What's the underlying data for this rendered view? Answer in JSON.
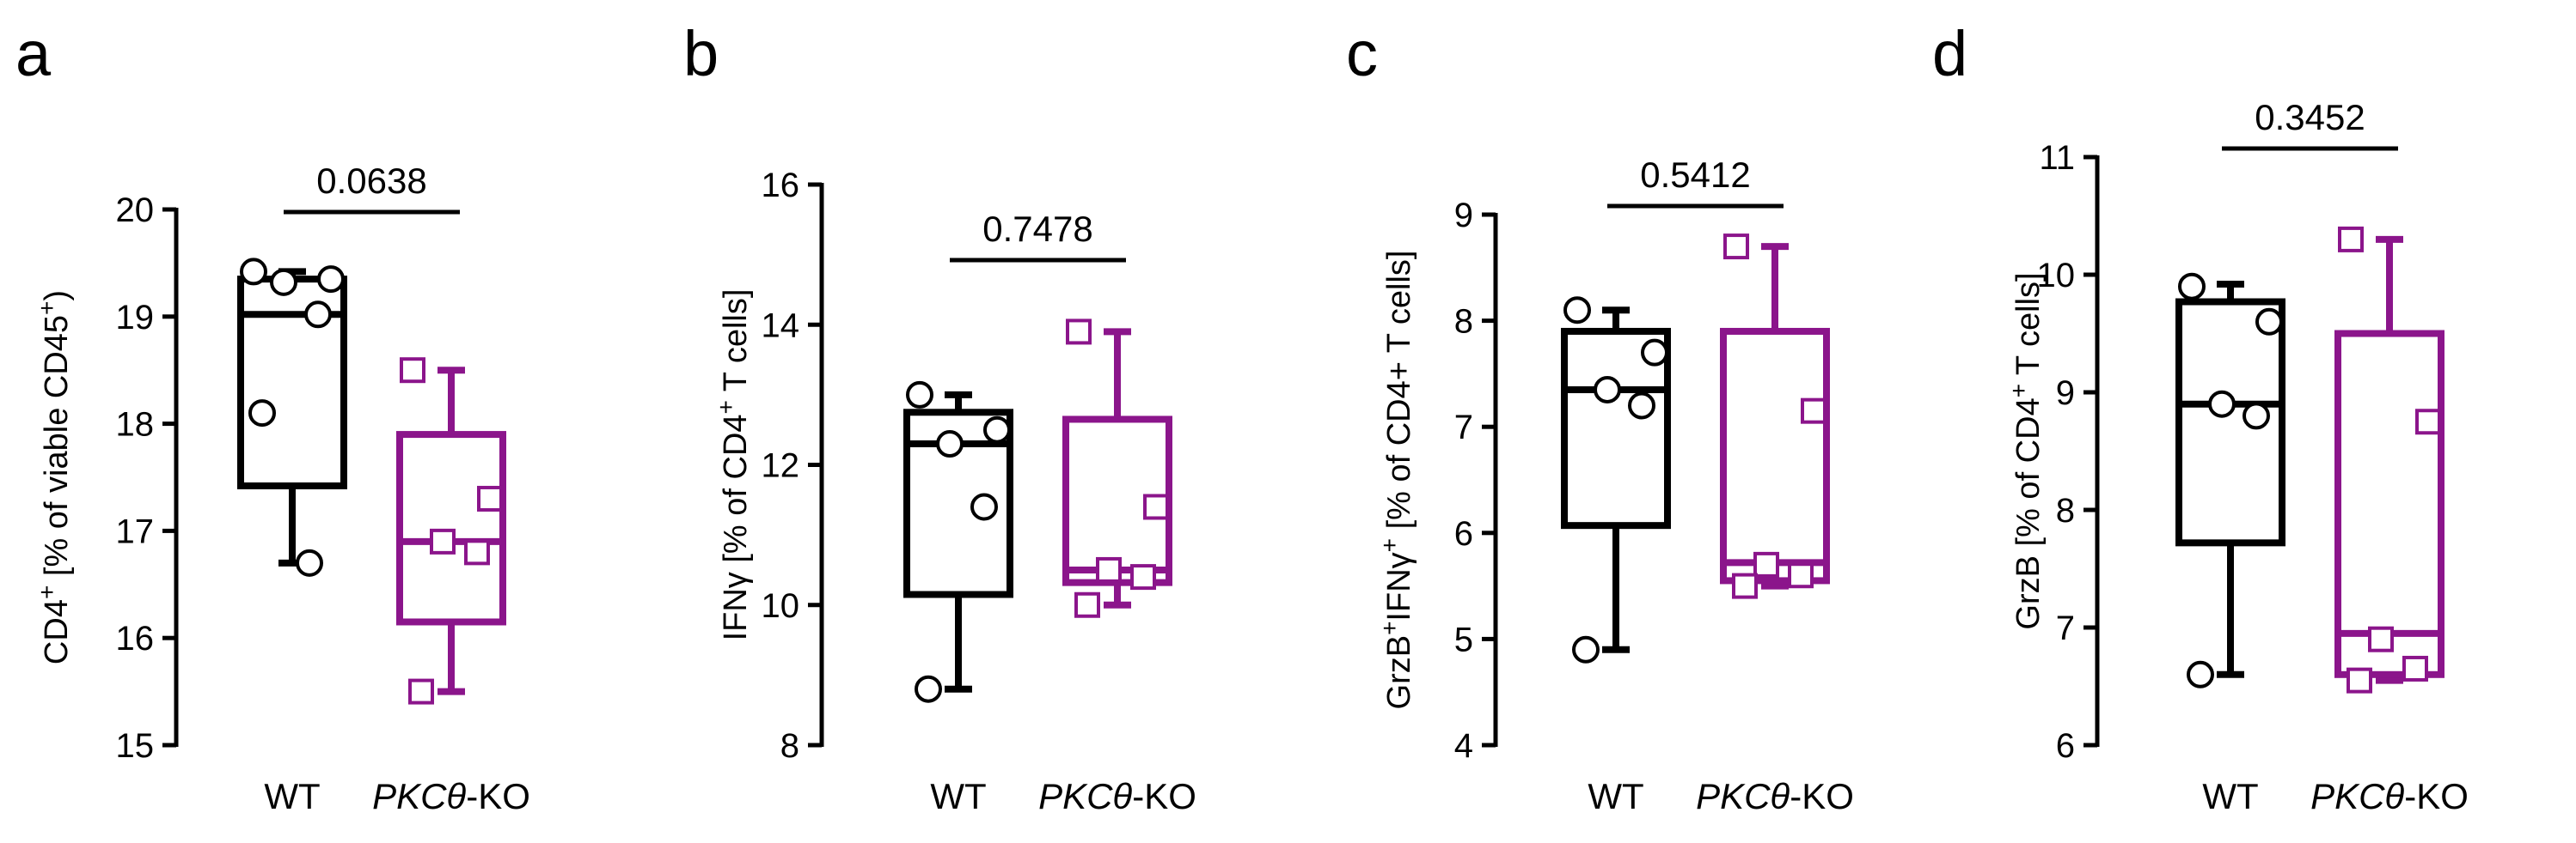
{
  "colors": {
    "wt": "#000000",
    "ko": "#8b158b"
  },
  "chart_data": [
    {
      "panel": "a",
      "type": "box",
      "ylabel": {
        "main": "CD4",
        "sup": "+",
        "rest": " [% of viable CD45",
        "sup2": "+",
        "end": ")"
      },
      "ylim": [
        15,
        20
      ],
      "yticks": [
        "15",
        "16",
        "17",
        "18",
        "19",
        "20"
      ],
      "categories": [
        {
          "name": "WT",
          "italic": "",
          "suffix": ""
        },
        {
          "name": "",
          "italic": "PKCθ",
          "suffix": "-KO"
        }
      ],
      "pvalue": "0.0638",
      "groups": [
        {
          "points": [
            19.42,
            19.35,
            19.32,
            19.02,
            18.1,
            16.7
          ],
          "min": 16.7,
          "q1": 17.42,
          "median": 19.02,
          "q3": 19.35,
          "max": 19.42
        },
        {
          "points": [
            18.5,
            17.3,
            16.9,
            16.8,
            15.5
          ],
          "min": 15.5,
          "q1": 16.15,
          "median": 16.9,
          "q3": 17.9,
          "max": 18.5
        }
      ]
    },
    {
      "panel": "b",
      "type": "box",
      "ylabel": {
        "main": "IFNγ",
        "sup": "",
        "rest": " [% of CD4",
        "sup2": "+",
        "end": " T cells]"
      },
      "ylim": [
        8,
        16
      ],
      "yticks": [
        "8",
        "10",
        "12",
        "14",
        "16"
      ],
      "categories": [
        {
          "name": "WT",
          "italic": "",
          "suffix": ""
        },
        {
          "name": "",
          "italic": "PKCθ",
          "suffix": "-KO"
        }
      ],
      "pvalue": "0.7478",
      "groups": [
        {
          "points": [
            13.0,
            12.5,
            12.3,
            11.4,
            8.8
          ],
          "min": 8.8,
          "q1": 10.15,
          "median": 12.3,
          "q3": 12.75,
          "max": 13.0
        },
        {
          "points": [
            13.9,
            11.4,
            10.5,
            10.4,
            10.0
          ],
          "min": 10.0,
          "q1": 10.32,
          "median": 10.5,
          "q3": 12.65,
          "max": 13.9
        }
      ]
    },
    {
      "panel": "c",
      "type": "box",
      "ylabel": {
        "main": "GrzB",
        "sup": "+",
        "rest": "IFNγ",
        "sup2": "+",
        "end": " [% of CD4+ T cells]"
      },
      "ylim": [
        4,
        9
      ],
      "yticks": [
        "4",
        "5",
        "6",
        "7",
        "8",
        "9"
      ],
      "categories": [
        {
          "name": "WT",
          "italic": "",
          "suffix": ""
        },
        {
          "name": "",
          "italic": "PKCθ",
          "suffix": "-KO"
        }
      ],
      "pvalue": "0.5412",
      "groups": [
        {
          "points": [
            8.1,
            7.7,
            7.35,
            7.2,
            4.9
          ],
          "min": 4.9,
          "q1": 6.07,
          "median": 7.35,
          "q3": 7.9,
          "max": 8.1
        },
        {
          "points": [
            8.7,
            7.15,
            5.7,
            5.6,
            5.5
          ],
          "min": 5.5,
          "q1": 5.55,
          "median": 5.72,
          "q3": 7.9,
          "max": 8.7
        }
      ]
    },
    {
      "panel": "d",
      "type": "box",
      "ylabel": {
        "main": "GrzB",
        "sup": "",
        "rest": " [% of CD4",
        "sup2": "+",
        "end": " T cells]"
      },
      "ylim": [
        6,
        11
      ],
      "yticks": [
        "6",
        "7",
        "8",
        "9",
        "10",
        "11"
      ],
      "categories": [
        {
          "name": "WT",
          "italic": "",
          "suffix": ""
        },
        {
          "name": "",
          "italic": "PKCθ",
          "suffix": "-KO"
        }
      ],
      "pvalue": "0.3452",
      "groups": [
        {
          "points": [
            9.9,
            9.6,
            8.9,
            8.8,
            6.6
          ],
          "min": 6.6,
          "q1": 7.72,
          "median": 8.9,
          "q3": 9.77,
          "max": 9.92
        },
        {
          "points": [
            10.3,
            8.75,
            6.9,
            6.65,
            6.55
          ],
          "min": 6.55,
          "q1": 6.6,
          "median": 6.95,
          "q3": 9.5,
          "max": 10.3
        }
      ]
    }
  ]
}
